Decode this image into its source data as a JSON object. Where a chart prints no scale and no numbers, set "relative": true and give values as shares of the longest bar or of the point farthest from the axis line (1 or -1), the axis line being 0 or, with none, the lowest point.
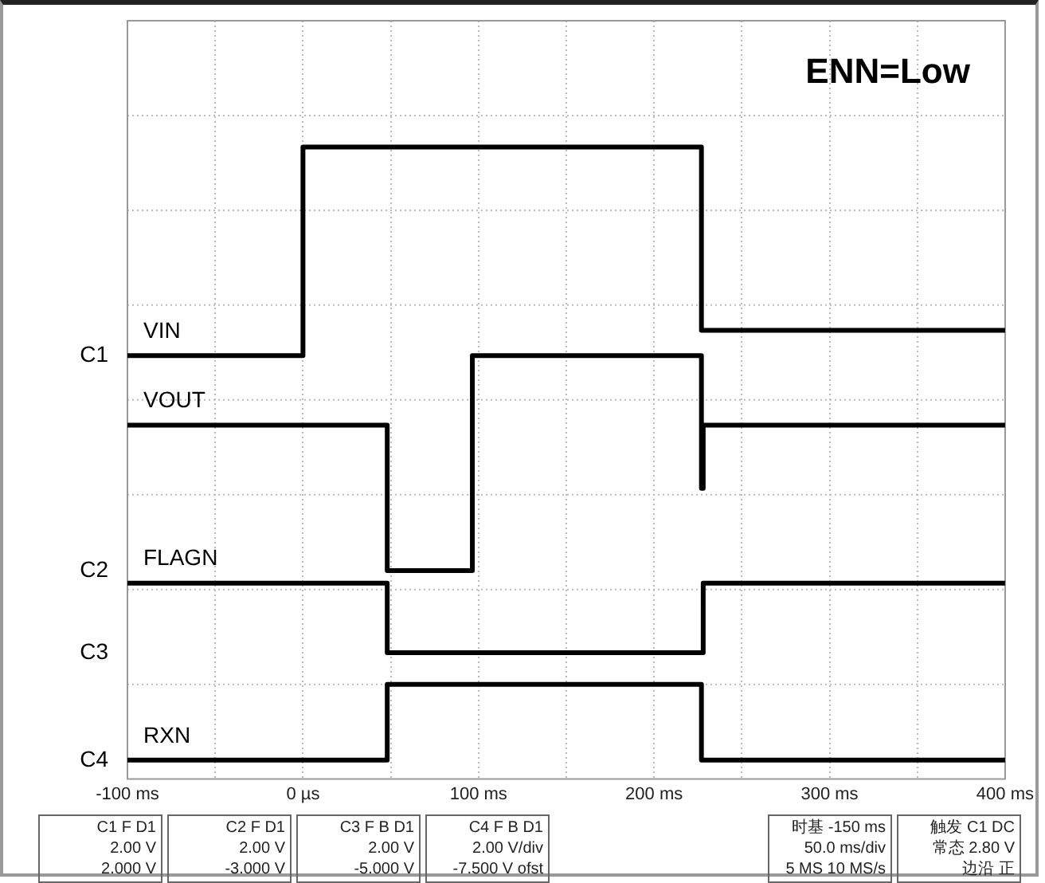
{
  "chart_data": {
    "type": "step",
    "title": "ENN=Low",
    "relative": true,
    "grid": true,
    "legend": false,
    "xlim": [
      -100,
      400
    ],
    "xticks": [
      {
        "value": -100,
        "label": "-100 ms"
      },
      {
        "value": -50,
        "label": null
      },
      {
        "value": 0,
        "label": "0 µs"
      },
      {
        "value": 50,
        "label": null
      },
      {
        "value": 100,
        "label": "100 ms"
      },
      {
        "value": 150,
        "label": null
      },
      {
        "value": 200,
        "label": "200 ms"
      },
      {
        "value": 250,
        "label": null
      },
      {
        "value": 300,
        "label": "300 ms"
      },
      {
        "value": 350,
        "label": null
      },
      {
        "value": 400,
        "label": "400 ms"
      }
    ],
    "series": [
      {
        "name": "VIN",
        "color": "#000000",
        "x": [
          -100,
          0,
          227,
          400
        ],
        "values": [
          0.67,
          1,
          0.71,
          0.71
        ]
      },
      {
        "name": "VOUT",
        "color": "#000000",
        "x": [
          -100,
          48,
          96.5,
          227,
          228,
          400
        ],
        "values": [
          0.56,
          0.33,
          0.67,
          0.46,
          0.56,
          0.56
        ]
      },
      {
        "name": "FLAGN",
        "color": "#000000",
        "x": [
          -100,
          48,
          228,
          400
        ],
        "values": [
          0.31,
          0.2,
          0.31,
          0.31
        ]
      },
      {
        "name": "RXN",
        "color": "#000000",
        "x": [
          -100,
          48,
          227,
          400
        ],
        "values": [
          0.03,
          0.15,
          0.03,
          0.03
        ]
      }
    ],
    "annotations": [
      "C1",
      "C2",
      "C3",
      "C4",
      "C1 F D1\n2.00 V\n2.000 V",
      "C2 F D1\n2.00 V\n-3.000 V",
      "C3 F B D1\n2.00 V\n-5.000 V",
      "C4 F B D1\n2.00 V/div\n-7.500 V ofst",
      "时基 -150 ms\n50.0 ms/div\n5 MS 10 MS/s",
      "触发 C1 DC\n常态 2.80 V\n边沿 正"
    ]
  }
}
